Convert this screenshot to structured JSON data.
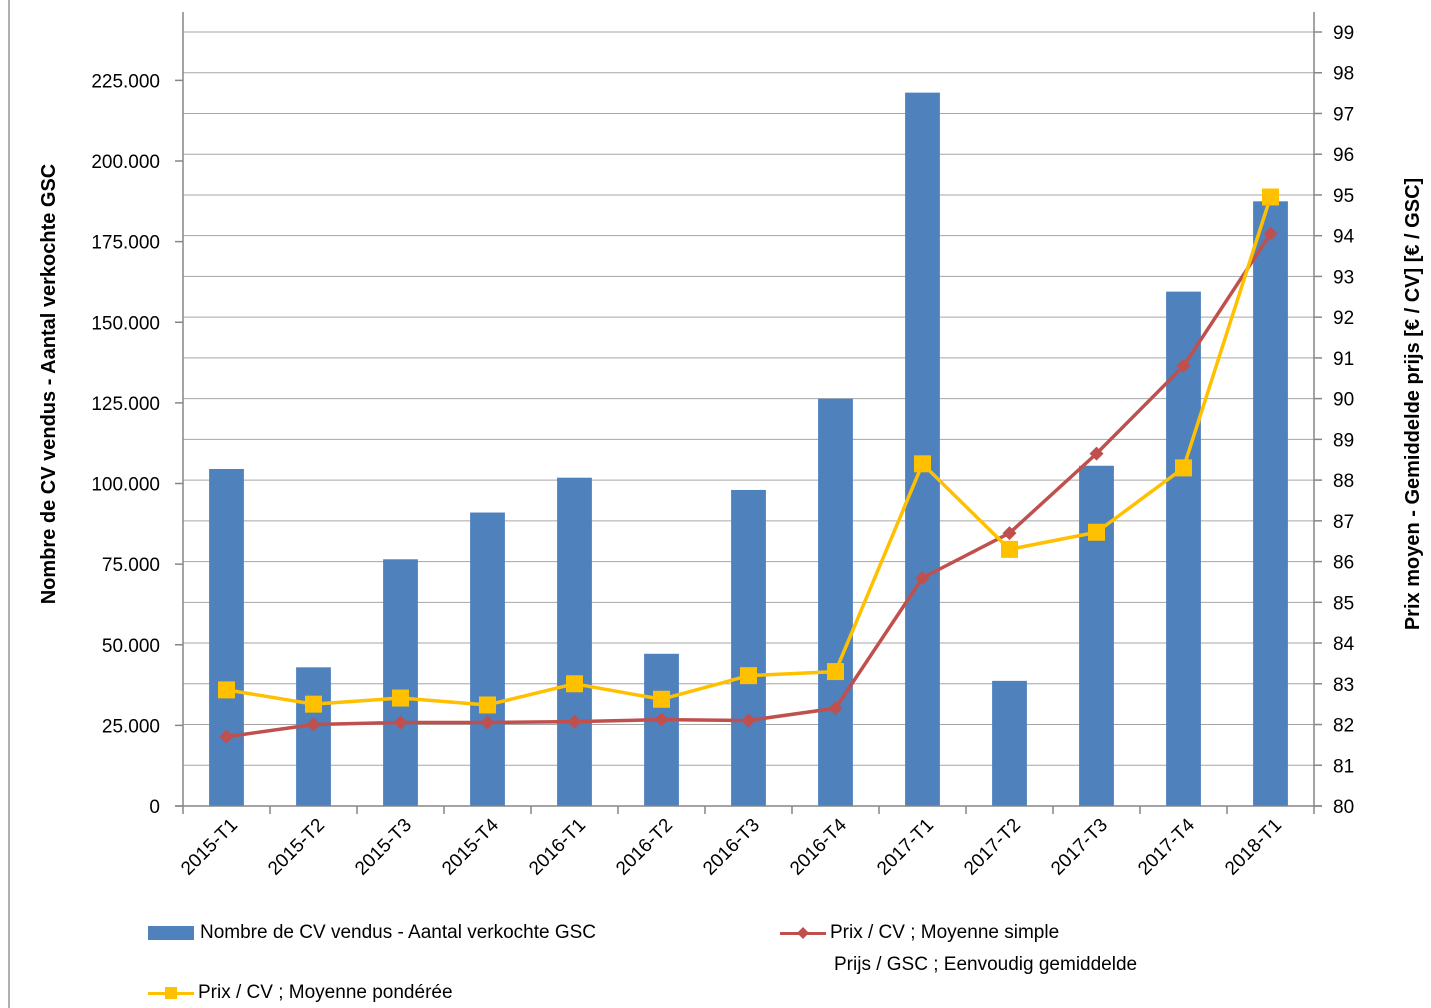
{
  "chart_data": {
    "type": "bar",
    "categories": [
      "2015-T1",
      "2015-T2",
      "2015-T3",
      "2015-T4",
      "2016-T1",
      "2016-T2",
      "2016-T3",
      "2016-T4",
      "2017-T1",
      "2017-T2",
      "2017-T3",
      "2017-T4",
      "2018-T1"
    ],
    "series": [
      {
        "name": "Nombre de CV vendus - Aantal verkochte GSC",
        "type": "bar",
        "axis": "left",
        "color": "#4F81BD",
        "values": [
          104500,
          43000,
          76500,
          91000,
          101800,
          47200,
          98000,
          126300,
          221200,
          38800,
          105500,
          159500,
          187500
        ]
      },
      {
        "name": "Prix / CV ; Moyenne simple",
        "name2": "Prijs / GSC ; Eenvoudig gemiddelde",
        "type": "line",
        "axis": "right",
        "color": "#C0504D",
        "marker": "diamond",
        "values": [
          81.7,
          82.0,
          82.05,
          82.05,
          82.07,
          82.12,
          82.1,
          82.4,
          85.6,
          86.7,
          88.65,
          90.8,
          94.05
        ]
      },
      {
        "name": "Prix / CV ; Moyenne pondérée",
        "type": "line",
        "axis": "right",
        "color": "#FFC000",
        "marker": "square",
        "values": [
          82.85,
          82.5,
          82.65,
          82.48,
          83.0,
          82.62,
          83.2,
          83.3,
          88.4,
          86.3,
          86.72,
          88.3,
          94.95
        ]
      }
    ],
    "ylabel_left": "Nombre de CV vendus - Aantal verkochte GSC",
    "ylabel_right": "Prix moyen - Gemiddelde prijs [€ / CV] [€ / GSC]",
    "ylim_left": [
      0,
      240000
    ],
    "ylim_right": [
      80,
      99
    ],
    "yticks_left": [
      "0",
      "25.000",
      "50.000",
      "75.000",
      "100.000",
      "125.000",
      "150.000",
      "175.000",
      "200.000",
      "225.000"
    ],
    "yticks_right": [
      "80",
      "81",
      "82",
      "83",
      "84",
      "85",
      "86",
      "87",
      "88",
      "89",
      "90",
      "91",
      "92",
      "93",
      "94",
      "95",
      "96",
      "97",
      "98",
      "99"
    ],
    "grid": true,
    "legend_position": "bottom"
  }
}
